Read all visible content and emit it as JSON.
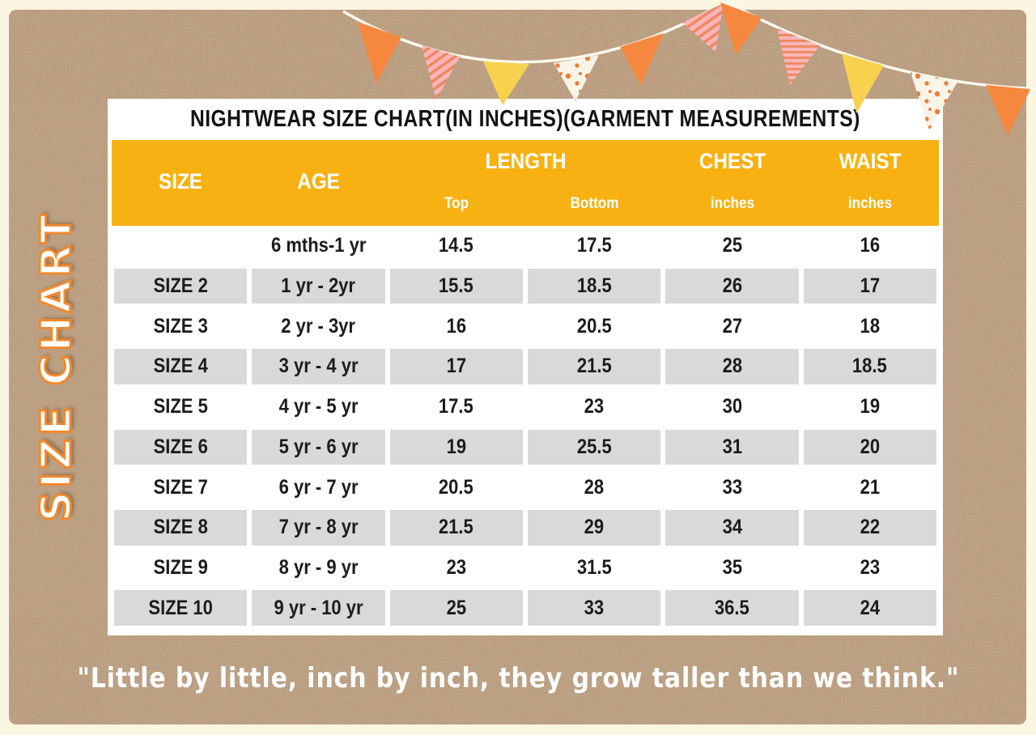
{
  "colors": {
    "kraft": "#b6987a",
    "border_cream": "#fbf6e2",
    "header_yellow": "#f8b112",
    "row_gray": "#d9d9d9",
    "flag_orange": "#f6873f",
    "flag_yellow": "#f8d24f",
    "flag_pink": "#f9b6ba",
    "flag_pink_stripe": "#f0875f",
    "flag_dot_bg": "#f8f4e8",
    "flag_dot": "#ee7c36",
    "string_cream": "#fdfaef"
  },
  "decor": {
    "side_label": "SIZE CHART",
    "bunting_flags": [
      "orange",
      "pink-striped",
      "yellow",
      "white-dotted",
      "orange",
      "pink-striped",
      "orange",
      "pink-striped",
      "yellow",
      "white-dotted",
      "orange"
    ]
  },
  "table": {
    "title": "NIGHTWEAR SIZE CHART(IN INCHES)(GARMENT MEASUREMENTS)",
    "header": {
      "size": "SIZE",
      "age": "AGE",
      "length": "LENGTH",
      "chest": "CHEST",
      "waist": "WAIST",
      "length_top": "Top",
      "length_bottom": "Bottom",
      "chest_unit": "inches",
      "waist_unit": "inches"
    },
    "column_keys": [
      "size",
      "age",
      "length-top",
      "length-bottom",
      "chest",
      "waist"
    ],
    "rows": [
      [
        "",
        "6 mths-1 yr",
        "14.5",
        "17.5",
        "25",
        "16"
      ],
      [
        "SIZE 2",
        "1 yr - 2yr",
        "15.5",
        "18.5",
        "26",
        "17"
      ],
      [
        "SIZE 3",
        "2 yr - 3yr",
        "16",
        "20.5",
        "27",
        "18"
      ],
      [
        "SIZE 4",
        "3 yr - 4 yr",
        "17",
        "21.5",
        "28",
        "18.5"
      ],
      [
        "SIZE 5",
        "4 yr - 5 yr",
        "17.5",
        "23",
        "30",
        "19"
      ],
      [
        "SIZE 6",
        "5 yr - 6 yr",
        "19",
        "25.5",
        "31",
        "20"
      ],
      [
        "SIZE 7",
        "6 yr - 7 yr",
        "20.5",
        "28",
        "33",
        "21"
      ],
      [
        "SIZE 8",
        "7 yr - 8 yr",
        "21.5",
        "29",
        "34",
        "22"
      ],
      [
        "SIZE 9",
        "8 yr - 9 yr",
        "23",
        "31.5",
        "35",
        "23"
      ],
      [
        "SIZE 10",
        "9 yr - 10 yr",
        "25",
        "33",
        "36.5",
        "24"
      ]
    ]
  },
  "quote": "\"Little by little, inch by inch, they grow taller than we think.\"",
  "chart_data": {
    "type": "table",
    "title": "NIGHTWEAR SIZE CHART(IN INCHES)(GARMENT MEASUREMENTS)",
    "columns": [
      "SIZE",
      "AGE",
      "LENGTH Top",
      "LENGTH Bottom",
      "CHEST inches",
      "WAIST inches"
    ],
    "rows": [
      [
        "",
        "6 mths-1 yr",
        14.5,
        17.5,
        25,
        16
      ],
      [
        "SIZE 2",
        "1 yr - 2yr",
        15.5,
        18.5,
        26,
        17
      ],
      [
        "SIZE 3",
        "2 yr - 3yr",
        16,
        20.5,
        27,
        18
      ],
      [
        "SIZE 4",
        "3 yr - 4 yr",
        17,
        21.5,
        28,
        18.5
      ],
      [
        "SIZE 5",
        "4 yr - 5 yr",
        17.5,
        23,
        30,
        19
      ],
      [
        "SIZE 6",
        "5 yr - 6 yr",
        19,
        25.5,
        31,
        20
      ],
      [
        "SIZE 7",
        "6 yr - 7 yr",
        20.5,
        28,
        33,
        21
      ],
      [
        "SIZE 8",
        "7 yr - 8 yr",
        21.5,
        29,
        34,
        22
      ],
      [
        "SIZE 9",
        "8 yr - 9 yr",
        23,
        31.5,
        35,
        23
      ],
      [
        "SIZE 10",
        "9 yr - 10 yr",
        25,
        33,
        36.5,
        24
      ]
    ]
  }
}
